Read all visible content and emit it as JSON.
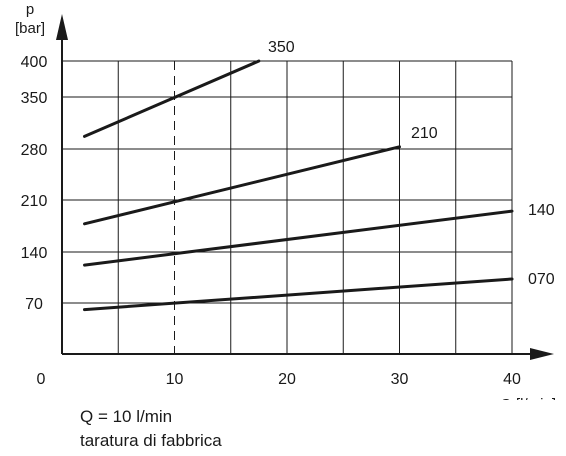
{
  "chart_data": {
    "type": "line",
    "ylabel_symbol": "p",
    "ylabel_unit": "[bar]",
    "xlabel": "Q [l/min]",
    "origin_label": "0",
    "xlim": [
      0,
      40
    ],
    "x_ticks": [
      10,
      20,
      30,
      40
    ],
    "y_ticks": [
      {
        "value": 70,
        "label": "70"
      },
      {
        "value": 140,
        "label": "140"
      },
      {
        "value": 210,
        "label": "210"
      },
      {
        "value": 280,
        "label": "280"
      },
      {
        "value": 350,
        "label": "350"
      },
      {
        "value": 400,
        "label": "400"
      }
    ],
    "y_grid": [
      70,
      140,
      210,
      280,
      350,
      400
    ],
    "x_grid": [
      5,
      10,
      15,
      20,
      25,
      30,
      35,
      40
    ],
    "reference_line_x": 10,
    "grid": true,
    "series": [
      {
        "name": "350",
        "x": [
          2,
          17.5
        ],
        "y": [
          297,
          400
        ]
      },
      {
        "name": "210",
        "x": [
          2,
          30
        ],
        "y": [
          178,
          283
        ]
      },
      {
        "name": "140",
        "x": [
          2,
          40
        ],
        "y": [
          122,
          195
        ]
      },
      {
        "name": "070",
        "x": [
          2,
          40
        ],
        "y": [
          61,
          103
        ]
      }
    ]
  },
  "notes": {
    "line1": "Q = 10 l/min",
    "line2": "taratura di fabbrica"
  }
}
